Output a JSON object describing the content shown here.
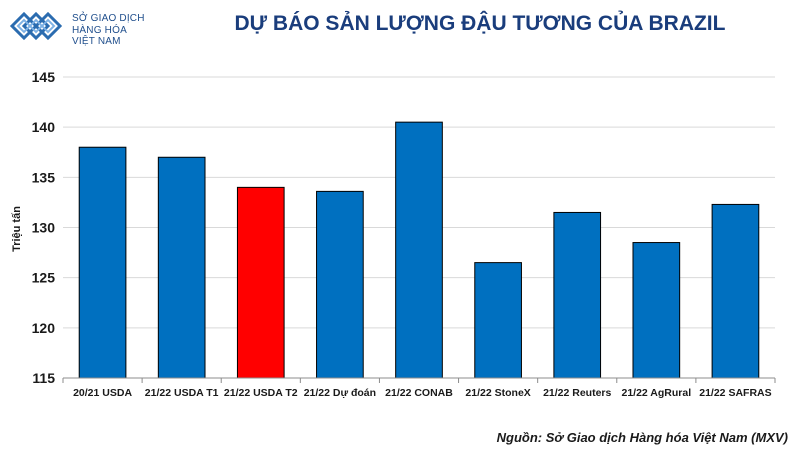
{
  "header": {
    "logo_line1": "SỞ GIAO DỊCH",
    "logo_line2": "HÀNG HÓA",
    "logo_line3": "VIỆT NAM"
  },
  "colors": {
    "primary_bar": "#0070c0",
    "highlight_bar": "#ff0000",
    "title": "#1a3d7c"
  },
  "chart_data": {
    "type": "bar",
    "title": "DỰ BÁO SẢN LƯỢNG ĐẬU TƯƠNG CỦA BRAZIL",
    "ylabel": "Triệu tấn",
    "xlabel": "",
    "ylim": [
      115,
      145
    ],
    "yticks": [
      115,
      120,
      125,
      130,
      135,
      140,
      145
    ],
    "grid": true,
    "categories": [
      "20/21 USDA",
      "21/22 USDA T1",
      "21/22 USDA T2",
      "21/22 Dự đoán",
      "21/22 CONAB",
      "21/22 StoneX",
      "21/22 Reuters",
      "21/22 AgRural",
      "21/22 SAFRAS"
    ],
    "values": [
      138.0,
      137.0,
      134.0,
      133.6,
      140.5,
      126.5,
      131.5,
      128.5,
      132.3
    ],
    "highlight_index": 2
  },
  "footer": {
    "source": "Nguồn: Sở Giao dịch Hàng hóa Việt Nam (MXV)"
  }
}
